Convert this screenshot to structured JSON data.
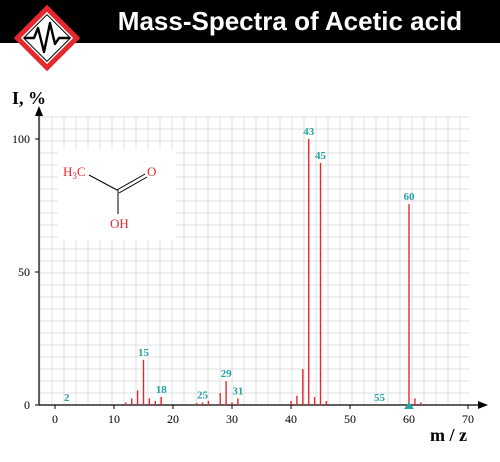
{
  "header": {
    "title": "Mass-Spectra of Acetic acid",
    "logo_icon": "spectrum-pulse-icon"
  },
  "structure": {
    "methyl_label_main": "H",
    "methyl_label_sub": "3",
    "methyl_label_end": "C",
    "carbonyl_o_label": "O",
    "hydroxyl_label": "OH"
  },
  "colors": {
    "accent": "#e8262d",
    "peak_label": "#27a3a6",
    "grid": "#d9d9d9",
    "axis": "#000000"
  },
  "chart_data": {
    "type": "bar",
    "title": "Mass-Spectra of Acetic acid",
    "xlabel": "m / z",
    "ylabel": "I, %",
    "xlim": [
      -2,
      71
    ],
    "ylim": [
      0,
      105
    ],
    "x_ticks": [
      0,
      10,
      20,
      30,
      40,
      50,
      60,
      70
    ],
    "y_ticks": [
      0,
      50,
      100
    ],
    "grid": true,
    "peaks": [
      {
        "mz": 12,
        "intensity": 1
      },
      {
        "mz": 13,
        "intensity": 2.5
      },
      {
        "mz": 14,
        "intensity": 5.5
      },
      {
        "mz": 15,
        "intensity": 17
      },
      {
        "mz": 16,
        "intensity": 2.5
      },
      {
        "mz": 17,
        "intensity": 1.5
      },
      {
        "mz": 18,
        "intensity": 3
      },
      {
        "mz": 24,
        "intensity": 0.8
      },
      {
        "mz": 25,
        "intensity": 1
      },
      {
        "mz": 26,
        "intensity": 1.5
      },
      {
        "mz": 28,
        "intensity": 4.5
      },
      {
        "mz": 29,
        "intensity": 9
      },
      {
        "mz": 30,
        "intensity": 1
      },
      {
        "mz": 31,
        "intensity": 2.5
      },
      {
        "mz": 40,
        "intensity": 1.5
      },
      {
        "mz": 41,
        "intensity": 3.5
      },
      {
        "mz": 42,
        "intensity": 13.5
      },
      {
        "mz": 43,
        "intensity": 100
      },
      {
        "mz": 44,
        "intensity": 3
      },
      {
        "mz": 45,
        "intensity": 91
      },
      {
        "mz": 46,
        "intensity": 1.5
      },
      {
        "mz": 60,
        "intensity": 75.5
      },
      {
        "mz": 61,
        "intensity": 2.5
      },
      {
        "mz": 62,
        "intensity": 1
      }
    ],
    "peak_labels": [
      {
        "mz": 2,
        "text": "2",
        "intensity": 0
      },
      {
        "mz": 15,
        "text": "15",
        "intensity": 17
      },
      {
        "mz": 18,
        "text": "18",
        "intensity": 3
      },
      {
        "mz": 25,
        "text": "25",
        "intensity": 1
      },
      {
        "mz": 29,
        "text": "29",
        "intensity": 9
      },
      {
        "mz": 31,
        "text": "31",
        "intensity": 2.5
      },
      {
        "mz": 43,
        "text": "43",
        "intensity": 100
      },
      {
        "mz": 45,
        "text": "45",
        "intensity": 91
      },
      {
        "mz": 55,
        "text": "55",
        "intensity": 0
      },
      {
        "mz": 60,
        "text": "60",
        "intensity": 75.5
      }
    ],
    "marker_mz": 60
  }
}
